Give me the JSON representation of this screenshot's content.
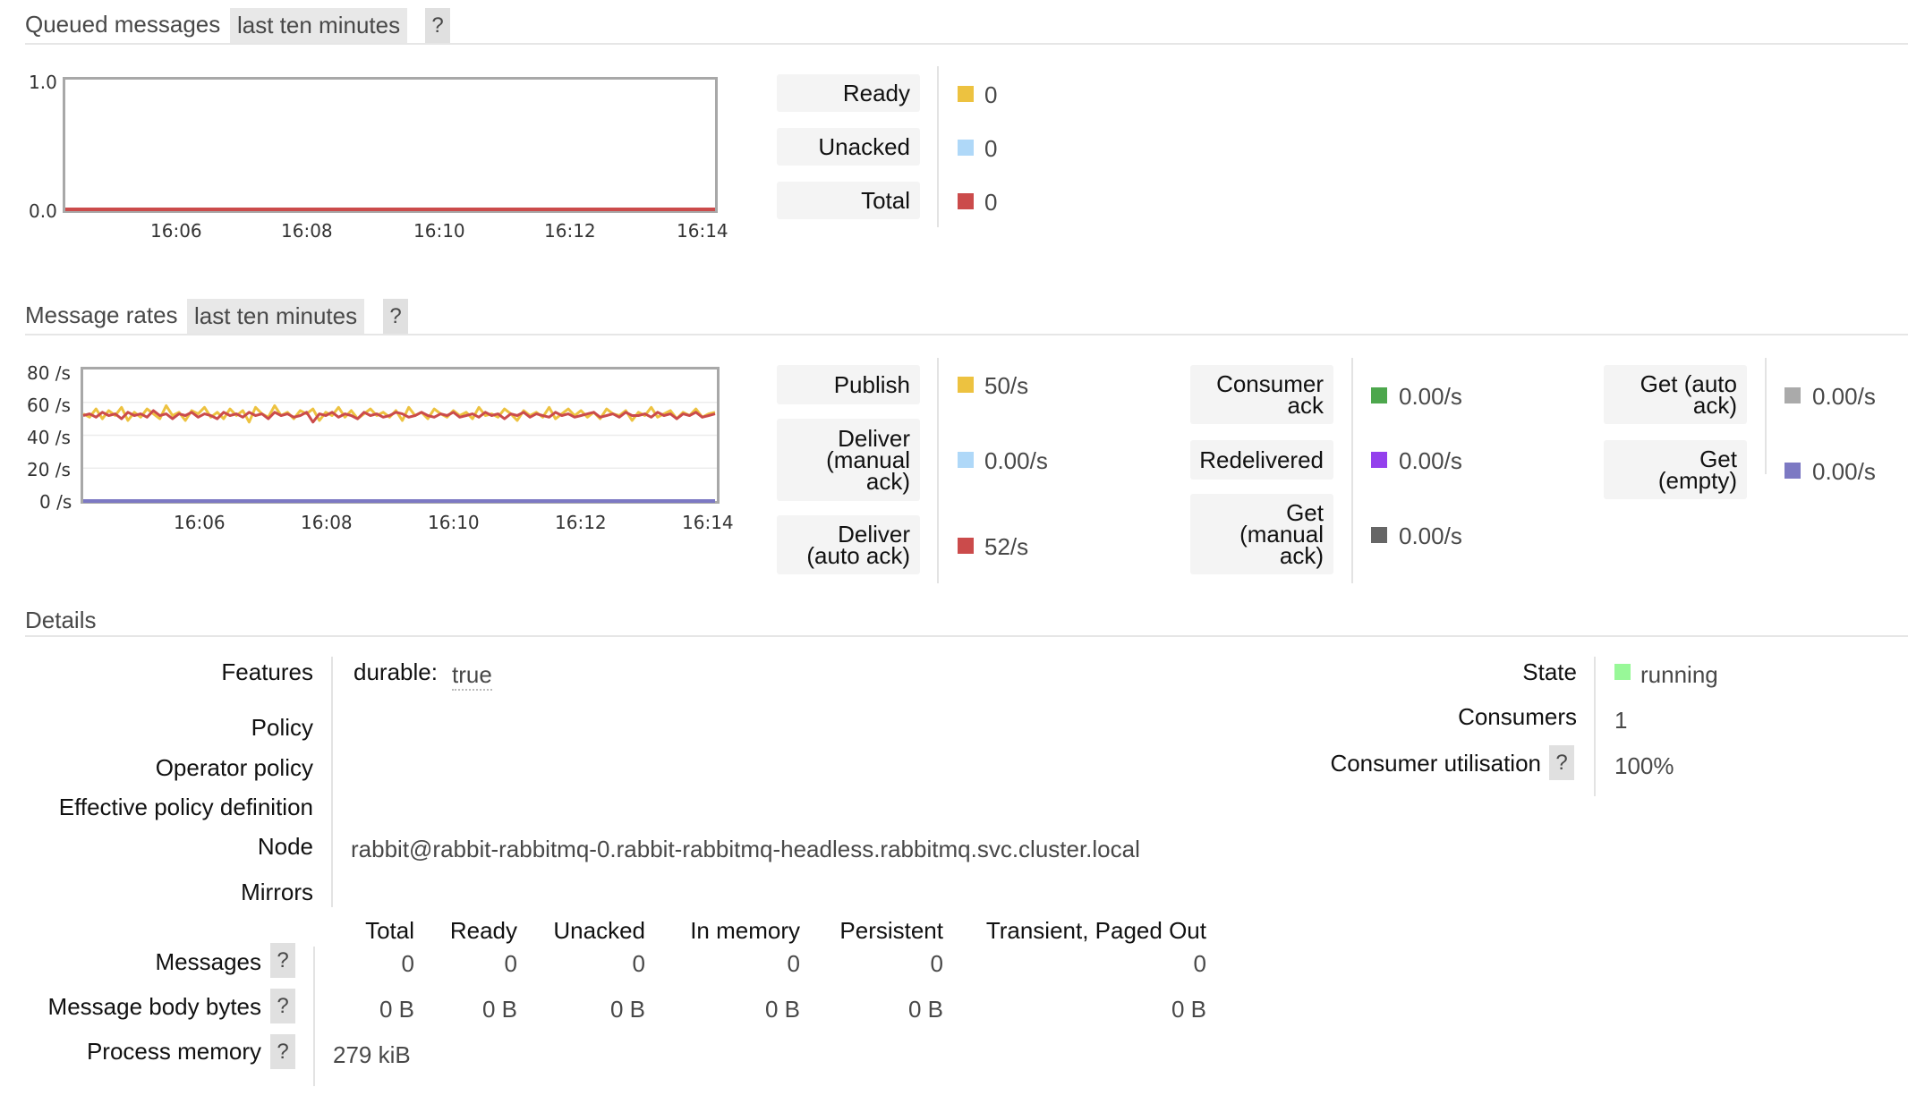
{
  "queued": {
    "title": "Queued messages",
    "range": "last ten minutes",
    "help": "?",
    "y_ticks": [
      "1.0",
      "0.0"
    ],
    "x_ticks": [
      "16:06",
      "16:08",
      "16:10",
      "16:12",
      "16:14"
    ],
    "legend": [
      {
        "label": "Ready",
        "value": "0",
        "color": "#edc240"
      },
      {
        "label": "Unacked",
        "value": "0",
        "color": "#afd8f8"
      },
      {
        "label": "Total",
        "value": "0",
        "color": "#cb4b4b"
      }
    ]
  },
  "rates": {
    "title": "Message rates",
    "range": "last ten minutes",
    "help": "?",
    "y_ticks": [
      "80 /s",
      "60 /s",
      "40 /s",
      "20 /s",
      "0 /s"
    ],
    "x_ticks": [
      "16:06",
      "16:08",
      "16:10",
      "16:12",
      "16:14"
    ],
    "col1": [
      {
        "label_lines": [
          "Publish"
        ],
        "value": "50/s",
        "color": "#edc240"
      },
      {
        "label_lines": [
          "Deliver",
          "(manual",
          "ack)"
        ],
        "value": "0.00/s",
        "color": "#afd8f8"
      },
      {
        "label_lines": [
          "Deliver",
          "(auto ack)"
        ],
        "value": "52/s",
        "color": "#cb4b4b"
      }
    ],
    "col2": [
      {
        "label_lines": [
          "Consumer",
          "ack"
        ],
        "value": "0.00/s",
        "color": "#4da74d"
      },
      {
        "label_lines": [
          "Redelivered"
        ],
        "value": "0.00/s",
        "color": "#9440ed"
      },
      {
        "label_lines": [
          "Get",
          "(manual",
          "ack)"
        ],
        "value": "0.00/s",
        "color": "#666666"
      }
    ],
    "col3": [
      {
        "label_lines": [
          "Get (auto",
          "ack)"
        ],
        "value": "0.00/s",
        "color": "#aaaaaa"
      },
      {
        "label_lines": [
          "Get",
          "(empty)"
        ],
        "value": "0.00/s",
        "color": "#7c79c3"
      }
    ]
  },
  "chart_data": [
    {
      "type": "line",
      "title": "Queued messages",
      "x": [
        "16:06",
        "16:08",
        "16:10",
        "16:12",
        "16:14"
      ],
      "ylim": [
        0,
        1
      ],
      "series": [
        {
          "name": "Ready",
          "values": [
            0,
            0,
            0,
            0,
            0
          ]
        },
        {
          "name": "Unacked",
          "values": [
            0,
            0,
            0,
            0,
            0
          ]
        },
        {
          "name": "Total",
          "values": [
            0,
            0,
            0,
            0,
            0
          ]
        }
      ]
    },
    {
      "type": "line",
      "title": "Message rates",
      "x_ticks": [
        "16:06",
        "16:08",
        "16:10",
        "16:12",
        "16:14"
      ],
      "ylim": [
        0,
        80
      ],
      "ylabel": "/s",
      "series": [
        {
          "name": "Publish",
          "values": [
            53,
            51,
            56,
            50,
            55,
            52,
            57,
            49,
            54,
            51,
            56,
            53,
            50,
            58,
            52,
            54,
            49,
            55,
            53,
            57,
            51,
            54,
            50,
            56,
            52,
            55,
            48,
            57,
            53,
            51,
            58,
            52,
            54,
            50,
            55,
            53,
            56,
            49,
            54,
            52,
            57,
            51,
            55,
            50,
            53,
            56,
            52,
            54,
            51,
            55,
            49,
            57,
            52,
            54,
            50,
            56,
            53,
            51,
            55,
            52,
            54,
            50,
            57,
            52,
            53,
            51,
            56,
            53,
            49,
            55,
            52,
            54,
            51,
            57,
            50,
            53,
            56,
            52,
            55,
            51,
            54,
            50,
            56,
            53,
            52,
            55,
            49,
            54,
            52,
            57,
            51,
            53,
            55,
            50,
            54,
            52,
            56,
            51,
            53,
            54
          ]
        },
        {
          "name": "Deliver (manual ack)",
          "values": [
            0,
            0,
            0,
            0,
            0,
            0,
            0,
            0,
            0,
            0,
            0,
            0,
            0,
            0,
            0,
            0,
            0,
            0,
            0,
            0,
            0,
            0,
            0,
            0,
            0,
            0,
            0,
            0,
            0,
            0,
            0,
            0,
            0,
            0,
            0,
            0,
            0,
            0,
            0,
            0,
            0,
            0,
            0,
            0,
            0,
            0,
            0,
            0,
            0,
            0,
            0,
            0,
            0,
            0,
            0,
            0,
            0,
            0,
            0,
            0,
            0,
            0,
            0,
            0,
            0,
            0,
            0,
            0,
            0,
            0,
            0,
            0,
            0,
            0,
            0,
            0,
            0,
            0,
            0,
            0,
            0,
            0,
            0,
            0,
            0,
            0,
            0,
            0,
            0,
            0,
            0,
            0,
            0,
            0,
            0,
            0,
            0,
            0,
            0,
            0
          ]
        },
        {
          "name": "Deliver (auto ack)",
          "values": [
            52,
            53,
            51,
            54,
            52,
            53,
            50,
            54,
            52,
            53,
            51,
            55,
            52,
            53,
            50,
            53,
            52,
            54,
            51,
            53,
            52,
            50,
            54,
            52,
            53,
            51,
            54,
            52,
            53,
            50,
            54,
            52,
            53,
            51,
            52,
            54,
            48,
            53,
            52,
            54,
            51,
            53,
            52,
            50,
            54,
            52,
            53,
            51,
            52,
            54,
            53,
            51,
            52,
            54,
            52,
            51,
            53,
            52,
            54,
            51,
            52,
            53,
            51,
            54,
            52,
            53,
            50,
            53,
            52,
            54,
            51,
            53,
            52,
            51,
            54,
            52,
            53,
            51,
            52,
            53,
            54,
            51,
            52,
            53,
            51,
            54,
            52,
            52,
            53,
            51,
            54,
            52,
            53,
            50,
            53,
            52,
            54,
            51,
            52,
            53
          ]
        },
        {
          "name": "Consumer ack",
          "values": [
            0,
            0,
            0,
            0,
            0
          ]
        },
        {
          "name": "Redelivered",
          "values": [
            0,
            0,
            0,
            0,
            0
          ]
        },
        {
          "name": "Get (manual ack)",
          "values": [
            0,
            0,
            0,
            0,
            0
          ]
        },
        {
          "name": "Get (auto ack)",
          "values": [
            0,
            0,
            0,
            0,
            0
          ]
        },
        {
          "name": "Get (empty)",
          "values": [
            0,
            0,
            0,
            0,
            0
          ]
        }
      ]
    }
  ],
  "details": {
    "title": "Details",
    "features_label": "Features",
    "durable_key": "durable:",
    "durable_value": "true",
    "policy_label": "Policy",
    "operator_policy_label": "Operator policy",
    "effective_policy_label": "Effective policy definition",
    "node_label": "Node",
    "node_value": "rabbit@rabbit-rabbitmq-0.rabbit-rabbitmq-headless.rabbitmq.svc.cluster.local",
    "mirrors_label": "Mirrors",
    "state_label": "State",
    "state_value": "running",
    "state_color": "#98f898",
    "consumers_label": "Consumers",
    "consumers_value": "1",
    "utilisation_label": "Consumer utilisation",
    "utilisation_value": "100%",
    "help": "?"
  },
  "stats": {
    "headers": [
      "Total",
      "Ready",
      "Unacked",
      "In memory",
      "Persistent",
      "Transient, Paged Out"
    ],
    "messages_label": "Messages",
    "messages": [
      "0",
      "0",
      "0",
      "0",
      "0",
      "0"
    ],
    "bytes_label": "Message body bytes",
    "bytes": [
      "0 B",
      "0 B",
      "0 B",
      "0 B",
      "0 B",
      "0 B"
    ],
    "process_memory_label": "Process memory",
    "process_memory_value": "279 kiB"
  }
}
